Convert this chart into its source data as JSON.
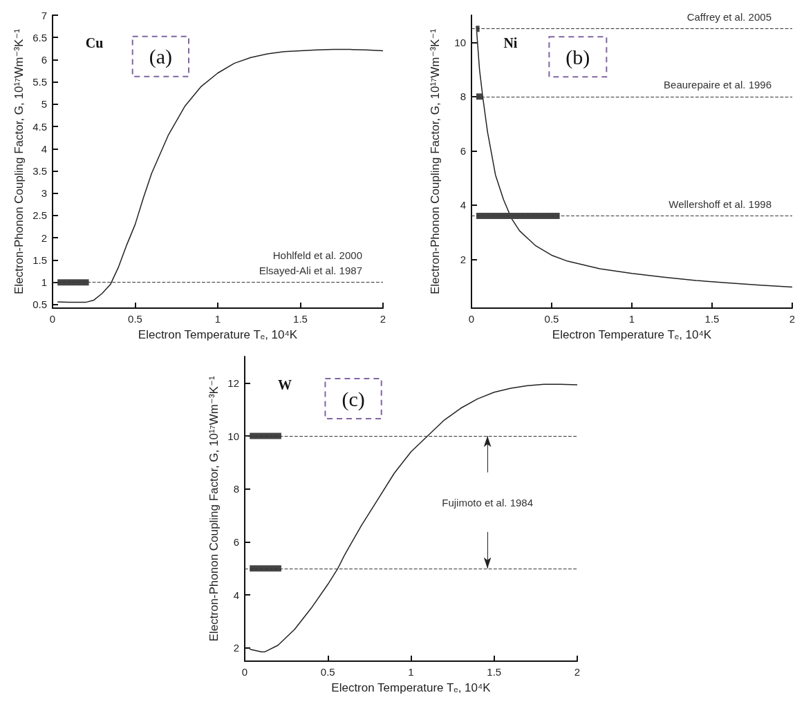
{
  "chart_data": [
    {
      "type": "line",
      "xlabel": "Electron Temperature Tₑ, 10⁴K",
      "ylabel": "Electron-Phonon Coupling Factor, G, 10¹⁷Wm⁻³K⁻¹",
      "xlim": [
        0,
        2
      ],
      "xticks": [
        0,
        0.5,
        1,
        1.5,
        2
      ],
      "ylim": [
        0.42,
        7
      ],
      "yticks": [
        0.5,
        1,
        1.5,
        2,
        2.5,
        3,
        3.5,
        4,
        4.5,
        5,
        5.5,
        6,
        6.5,
        7
      ],
      "marker": "none",
      "grid": false,
      "series": [
        {
          "color": "#222222",
          "x": [
            0.03,
            0.1,
            0.2,
            0.25,
            0.3,
            0.35,
            0.4,
            0.45,
            0.5,
            0.55,
            0.6,
            0.7,
            0.8,
            0.9,
            1.0,
            1.1,
            1.2,
            1.3,
            1.4,
            1.5,
            1.6,
            1.7,
            1.8,
            1.9,
            2.0
          ],
          "values": [
            0.56,
            0.55,
            0.55,
            0.6,
            0.75,
            0.95,
            1.35,
            1.85,
            2.3,
            2.9,
            3.45,
            4.3,
            4.95,
            5.4,
            5.7,
            5.92,
            6.05,
            6.13,
            6.18,
            6.2,
            6.22,
            6.23,
            6.23,
            6.22,
            6.2
          ]
        },
        {
          "color": "#444444",
          "x": [
            0.03,
            0.22
          ],
          "values": [
            1,
            1
          ]
        }
      ],
      "ref_lines": [
        {
          "axis": "y",
          "value": 1,
          "label": "Hohlfeld et al. 2000\nElsayed-Ali et al. 1987",
          "color": "#333333",
          "line_style": "dashed"
        }
      ],
      "annotations": [
        "Cu",
        "(a)"
      ]
    },
    {
      "type": "line",
      "xlabel": "Electron Temperature Tₑ, 10⁴K",
      "ylabel": "Electron-Phonon Coupling Factor, G, 10¹⁷Wm⁻³K⁻¹",
      "xlim": [
        0,
        2
      ],
      "xticks": [
        0,
        0.5,
        1,
        1.5,
        2
      ],
      "ylim": [
        0.2,
        11
      ],
      "yticks": [
        2,
        4,
        6,
        8,
        10
      ],
      "marker": "none",
      "grid": false,
      "series": [
        {
          "color": "#222222",
          "x": [
            0.03,
            0.05,
            0.07,
            0.1,
            0.15,
            0.2,
            0.25,
            0.3,
            0.4,
            0.5,
            0.6,
            0.8,
            1.0,
            1.2,
            1.4,
            1.6,
            1.8,
            2.0
          ],
          "values": [
            10.6,
            9.0,
            8.0,
            6.7,
            5.1,
            4.2,
            3.5,
            3.05,
            2.5,
            2.15,
            1.93,
            1.65,
            1.48,
            1.34,
            1.22,
            1.13,
            1.05,
            0.98
          ]
        },
        {
          "color": "#444444",
          "x": [
            0.03,
            0.05
          ],
          "values": [
            10.5,
            10.5
          ]
        },
        {
          "color": "#444444",
          "x": [
            0.03,
            0.07
          ],
          "values": [
            8,
            8
          ]
        },
        {
          "color": "#444444",
          "x": [
            0.03,
            0.55
          ],
          "values": [
            3.6,
            3.6
          ]
        }
      ],
      "ref_lines": [
        {
          "axis": "y",
          "value": 10.5,
          "label": "Caffrey et al. 2005",
          "color": "#333333",
          "line_style": "dashed"
        },
        {
          "axis": "y",
          "value": 8,
          "label": "Beaurepaire et al. 1996",
          "color": "#333333",
          "line_style": "dashed"
        },
        {
          "axis": "y",
          "value": 3.6,
          "label": "Wellershoff et al. 1998",
          "color": "#333333",
          "line_style": "dashed"
        }
      ],
      "annotations": [
        "Ni",
        "(b)"
      ]
    },
    {
      "type": "line",
      "xlabel": "Electron Temperature Tₑ, 10⁴K",
      "ylabel": "Electron-Phonon Coupling Factor, G, 10¹⁷Wm⁻³K⁻¹",
      "xlim": [
        0,
        2
      ],
      "xticks": [
        0,
        0.5,
        1,
        1.5,
        2
      ],
      "ylim": [
        1.5,
        13
      ],
      "yticks": [
        2,
        4,
        6,
        8,
        10,
        12
      ],
      "marker": "none",
      "grid": false,
      "series": [
        {
          "color": "#222222",
          "x": [
            0.03,
            0.1,
            0.12,
            0.2,
            0.3,
            0.4,
            0.5,
            0.56,
            0.6,
            0.7,
            0.8,
            0.9,
            1.0,
            1.1,
            1.2,
            1.3,
            1.4,
            1.5,
            1.6,
            1.7,
            1.8,
            1.9,
            2.0
          ],
          "values": [
            1.95,
            1.85,
            1.85,
            2.1,
            2.7,
            3.5,
            4.4,
            5.0,
            5.5,
            6.6,
            7.6,
            8.6,
            9.4,
            10.0,
            10.6,
            11.05,
            11.4,
            11.65,
            11.8,
            11.9,
            11.95,
            11.95,
            11.93
          ]
        },
        {
          "color": "#444444",
          "x": [
            0.03,
            0.22
          ],
          "values": [
            10,
            10
          ]
        },
        {
          "color": "#444444",
          "x": [
            0.03,
            0.22
          ],
          "values": [
            5,
            5
          ]
        }
      ],
      "ref_lines": [
        {
          "axis": "y",
          "value": 10,
          "color": "#333333",
          "line_style": "dashed"
        },
        {
          "axis": "y",
          "value": 5,
          "color": "#333333",
          "line_style": "dashed"
        }
      ],
      "annotations": [
        "W",
        "(c)",
        "Fujimoto et al. 1984"
      ]
    }
  ]
}
